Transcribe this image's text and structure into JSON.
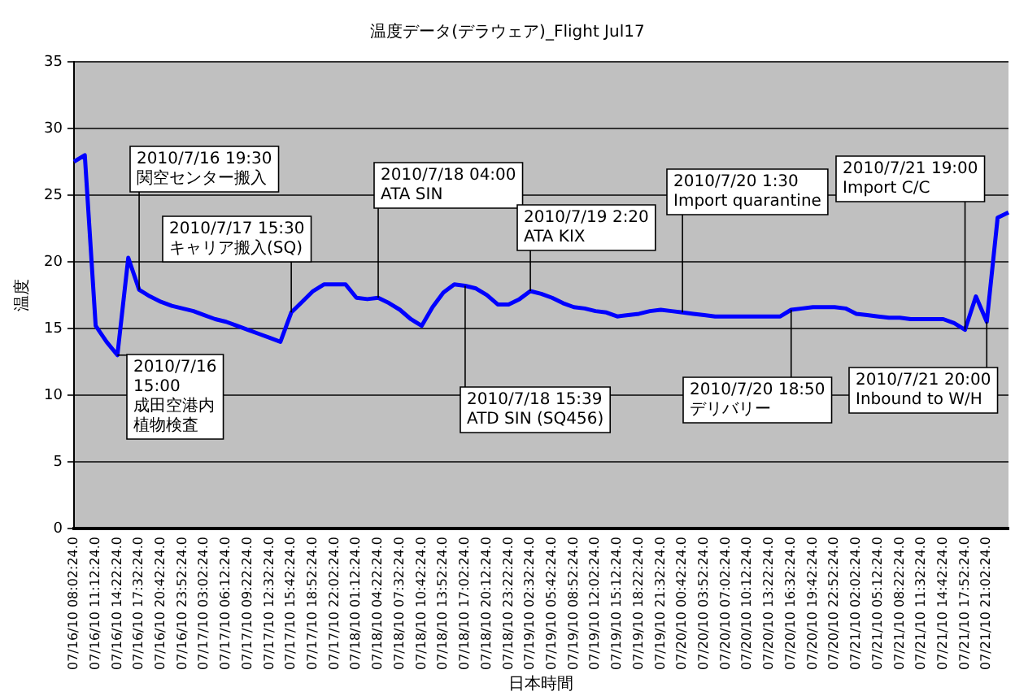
{
  "chart_data": {
    "type": "line",
    "title": "温度データ(デラウェア)_Flight Jul17",
    "xlabel": "日本時間",
    "ylabel": "温度",
    "marker": "none",
    "grid": "y",
    "color": "#0000ff",
    "ylim": [
      0,
      35
    ],
    "yticks": [
      0,
      5,
      10,
      15,
      20,
      25,
      30,
      35
    ],
    "categories": [
      "07/16/10 08:02:24.0",
      null,
      "07/16/10 11:12:24.0",
      null,
      "07/16/10 14:22:24.0",
      null,
      "07/16/10 17:32:24.0",
      null,
      "07/16/10 20:42:24.0",
      null,
      "07/16/10 23:52:24.0",
      null,
      "07/17/10 03:02:24.0",
      null,
      "07/17/10 06:12:24.0",
      null,
      "07/17/10 09:22:24.0",
      null,
      "07/17/10 12:32:24.0",
      null,
      "07/17/10 15:42:24.0",
      null,
      "07/17/10 18:52:24.0",
      null,
      "07/17/10 22:02:24.0",
      null,
      "07/18/10 01:12:24.0",
      null,
      "07/18/10 04:22:24.0",
      null,
      "07/18/10 07:32:24.0",
      null,
      "07/18/10 10:42:24.0",
      null,
      "07/18/10 13:52:24.0",
      null,
      "07/18/10 17:02:24.0",
      null,
      "07/18/10 20:12:24.0",
      null,
      "07/18/10 23:22:24.0",
      null,
      "07/19/10 02:32:24.0",
      null,
      "07/19/10 05:42:24.0",
      null,
      "07/19/10 08:52:24.0",
      null,
      "07/19/10 12:02:24.0",
      null,
      "07/19/10 15:12:24.0",
      null,
      "07/19/10 18:22:24.0",
      null,
      "07/19/10 21:32:24.0",
      null,
      "07/20/10 00:42:24.0",
      null,
      "07/20/10 03:52:24.0",
      null,
      "07/20/10 07:02:24.0",
      null,
      "07/20/10 10:12:24.0",
      null,
      "07/20/10 13:22:24.0",
      null,
      "07/20/10 16:32:24.0",
      null,
      "07/20/10 19:42:24.0",
      null,
      "07/20/10 22:52:24.0",
      null,
      "07/21/10 02:02:24.0",
      null,
      "07/21/10 05:12:24.0",
      null,
      "07/21/10 08:22:24.0",
      null,
      "07/21/10 11:32:24.0",
      null,
      "07/21/10 14:42:24.0",
      null,
      "07/21/10 17:52:24.0",
      null,
      "07/21/10 21:02:24.0",
      null,
      null
    ],
    "values": [
      27.5,
      28,
      15.2,
      14,
      13,
      20.3,
      17.9,
      17.4,
      17,
      16.7,
      16.5,
      16.3,
      16,
      15.7,
      15.5,
      15.2,
      14.9,
      14.6,
      14.3,
      14,
      16.2,
      17,
      17.8,
      18.3,
      18.3,
      18.3,
      17.3,
      17.2,
      17.3,
      16.9,
      16.4,
      15.7,
      15.2,
      16.6,
      17.7,
      18.3,
      18.2,
      18,
      17.5,
      16.8,
      16.8,
      17.2,
      17.8,
      17.6,
      17.3,
      16.9,
      16.6,
      16.5,
      16.3,
      16.2,
      15.9,
      16,
      16.1,
      16.3,
      16.4,
      16.3,
      16.2,
      16.1,
      16,
      15.9,
      15.9,
      15.9,
      15.9,
      15.9,
      15.9,
      15.9,
      16.4,
      16.5,
      16.6,
      16.6,
      16.6,
      16.5,
      16.1,
      16,
      15.9,
      15.8,
      15.8,
      15.7,
      15.7,
      15.7,
      15.7,
      15.4,
      14.9,
      17.4,
      15.5,
      23.3,
      23.7
    ],
    "annotations": [
      {
        "text": "2010/7/16 19:30\n関空センター搬入",
        "x": "07/16/10 17:32:24.0",
        "y": 17.9
      },
      {
        "text": "2010/7/16\n15:00\n成田空港内植物検査",
        "x": "07/16/10 14:22:24.0",
        "y": 13
      },
      {
        "text": "2010/7/17 15:30\nキャリア搬入(SQ)",
        "x": "07/17/10 15:42:24.0",
        "y": 16.2
      },
      {
        "text": "2010/7/18 04:00\nATA SIN",
        "x": "07/18/10 04:22:24.0",
        "y": 17.3
      },
      {
        "text": "2010/7/18 15:39\nATD SIN (SQ456)",
        "x": "07/18/10 17:02:24.0",
        "y": 18.2
      },
      {
        "text": "2010/7/19 2:20\nATA KIX",
        "x": "07/19/10 02:32:24.0",
        "y": 17.8
      },
      {
        "text": "2010/7/20 1:30\nImport quarantine",
        "x": "07/20/10 00:42:24.0",
        "y": 16.2
      },
      {
        "text": "2010/7/20 18:50\nデリバリー",
        "x": "07/20/10 16:32:24.0",
        "y": 16.4
      },
      {
        "text": "2010/7/21 19:00\nImport C/C",
        "x": "07/21/10 17:52:24.0",
        "y": 14.9
      },
      {
        "text": "2010/7/21 20:00\nInbound to W/H",
        "x": "07/21/10 21:02:24.0",
        "y": 15.5
      }
    ]
  }
}
